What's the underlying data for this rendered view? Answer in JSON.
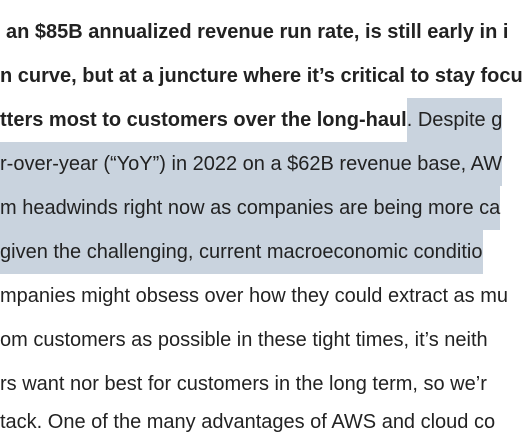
{
  "document": {
    "lines": [
      {
        "bold": "an $85B annualized revenue run rate, is still early in i",
        "rest": "",
        "rest_highlight": false
      },
      {
        "bold": "n curve, but at a juncture where it’s critical to stay focu",
        "rest": "",
        "rest_highlight": false
      },
      {
        "bold": "tters most to customers over the long-haul",
        "rest": ". Despite g",
        "rest_highlight": "partial"
      },
      {
        "bold": "",
        "rest": "r-over-year (“YoY”) in 2022 on a $62B revenue base, AW",
        "rest_highlight": true
      },
      {
        "bold": "",
        "rest": "m headwinds right now as companies are being more ca",
        "rest_highlight": true
      },
      {
        "bold": "",
        "rest": " given the challenging, current macroeconomic conditio",
        "rest_highlight": true
      },
      {
        "bold": "",
        "rest": "mpanies might obsess over how they could extract as mu",
        "rest_highlight": false
      },
      {
        "bold": "",
        "rest": "om customers as possible in these tight times, it’s neith",
        "rest_highlight": false
      },
      {
        "bold": "",
        "rest": "rs want nor best for customers in the long term, so we’r",
        "rest_highlight": false
      },
      {
        "bold": "",
        "rest": " tack. One of the many advantages of AWS and cloud co",
        "rest_highlight": false
      }
    ]
  }
}
